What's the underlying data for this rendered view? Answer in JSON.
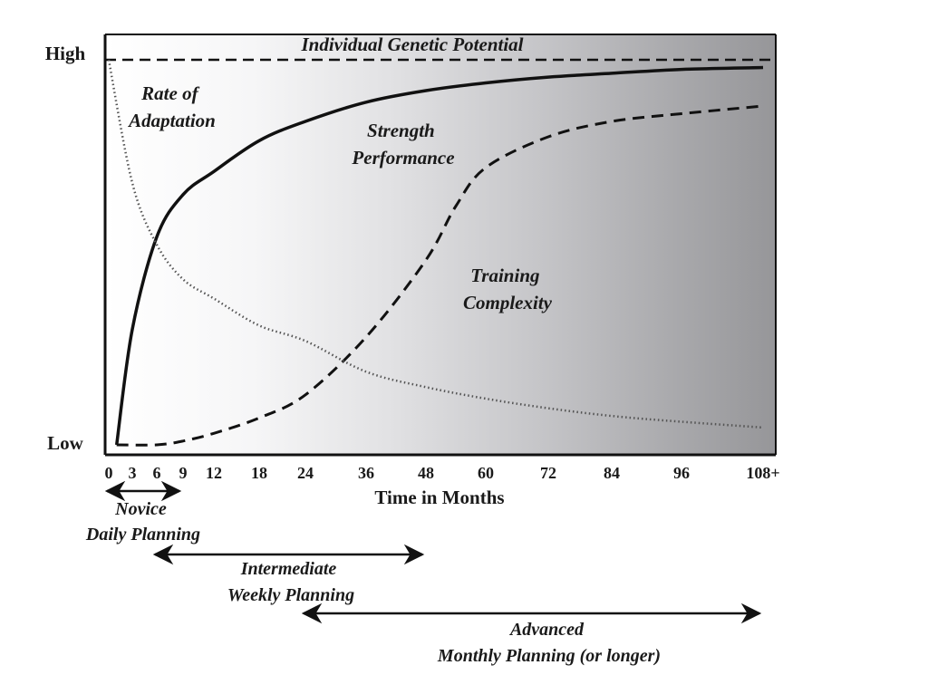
{
  "chart_data": {
    "type": "line",
    "title": "",
    "xlabel": "Time in Months",
    "ylabel": "",
    "y_tick_labels": [
      "High",
      "Low"
    ],
    "x_ticks": [
      0,
      3,
      6,
      9,
      12,
      18,
      24,
      36,
      48,
      60,
      72,
      84,
      96,
      108
    ],
    "x_tick_labels": [
      "0",
      "3",
      "6",
      "9",
      "12",
      "18",
      "24",
      "36",
      "48",
      "60",
      "72",
      "84",
      "96",
      "108+"
    ],
    "xlim": [
      0,
      108
    ],
    "ylim": [
      0,
      100
    ],
    "reference_line": {
      "name": "Individual Genetic Potential",
      "value": 100
    },
    "series": [
      {
        "name": "Strength Performance",
        "label_lines": [
          "Strength",
          "Performance"
        ],
        "style": "solid",
        "x": [
          1,
          3,
          6,
          9,
          12,
          18,
          24,
          36,
          48,
          60,
          72,
          84,
          96,
          108
        ],
        "y": [
          0,
          30,
          54,
          65,
          71,
          79,
          84,
          89,
          92,
          94,
          95.5,
          96.5,
          97.5,
          98
        ]
      },
      {
        "name": "Training Complexity",
        "label_lines": [
          "Training",
          "Complexity"
        ],
        "style": "dashed",
        "x": [
          1,
          6,
          9,
          12,
          18,
          24,
          36,
          48,
          54,
          60,
          72,
          84,
          96,
          108
        ],
        "y": [
          0,
          0,
          1,
          3,
          7,
          13,
          28,
          48,
          62,
          72,
          80,
          84,
          86,
          88
        ]
      },
      {
        "name": "Rate of Adaptation",
        "label_lines": [
          "Rate of",
          "Adaptation"
        ],
        "style": "dotted",
        "x": [
          0,
          3,
          6,
          9,
          12,
          18,
          24,
          36,
          48,
          60,
          72,
          84,
          96,
          108
        ],
        "y": [
          100,
          68,
          52,
          43,
          38,
          31,
          27,
          19,
          15,
          12,
          9.5,
          7.5,
          6,
          4.5
        ]
      }
    ],
    "phases": [
      {
        "name": "Novice",
        "label_lines": [
          "Novice",
          "Daily Planning"
        ],
        "start": 0,
        "end": 9
      },
      {
        "name": "Intermediate",
        "label_lines": [
          "Intermediate",
          "Weekly Planning"
        ],
        "start": 6,
        "end": 48
      },
      {
        "name": "Advanced",
        "label_lines": [
          "Advanced",
          "Monthly Planning (or longer)"
        ],
        "start": 24,
        "end": 108
      }
    ],
    "grid": false,
    "legend": "none"
  }
}
